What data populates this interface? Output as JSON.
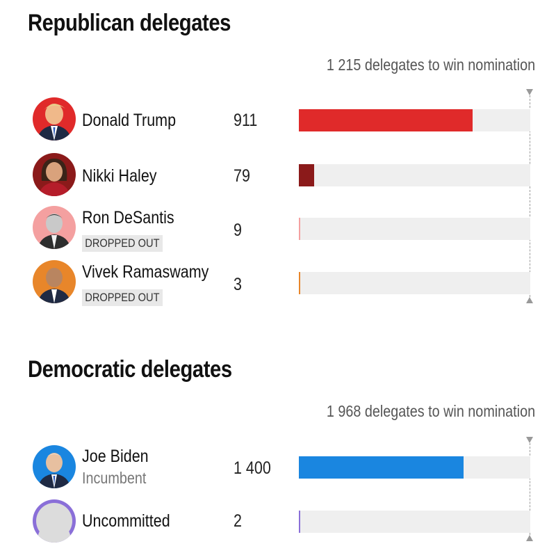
{
  "chart_data": [
    {
      "type": "bar",
      "title": "Republican delegates",
      "threshold": 1215,
      "threshold_label": "1 215 delegates to win nomination",
      "categories": [
        "Donald Trump",
        "Nikki Haley",
        "Ron DeSantis",
        "Vivek Ramaswamy"
      ],
      "values": [
        911,
        79,
        9,
        3
      ],
      "value_labels": [
        "911",
        "79",
        "9",
        "3"
      ],
      "status": [
        "",
        "",
        "DROPPED OUT",
        "DROPPED OUT"
      ],
      "colors": [
        "#e02a2a",
        "#8b1a1a",
        "#f4a0a0",
        "#e8862a"
      ],
      "xlim": [
        0,
        1215
      ]
    },
    {
      "type": "bar",
      "title": "Democratic delegates",
      "threshold": 1968,
      "threshold_label": "1 968 delegates to win nomination",
      "categories": [
        "Joe Biden",
        "Uncommitted"
      ],
      "values": [
        1400,
        2
      ],
      "value_labels": [
        "1 400",
        "2"
      ],
      "status": [
        "Incumbent",
        ""
      ],
      "colors": [
        "#1a86e0",
        "#8a6fd8"
      ],
      "xlim": [
        0,
        1968
      ]
    }
  ],
  "icons": {
    "candidate": "person-portrait-icon",
    "threshold_top": "triangle-down-icon",
    "threshold_bottom": "triangle-up-icon"
  }
}
